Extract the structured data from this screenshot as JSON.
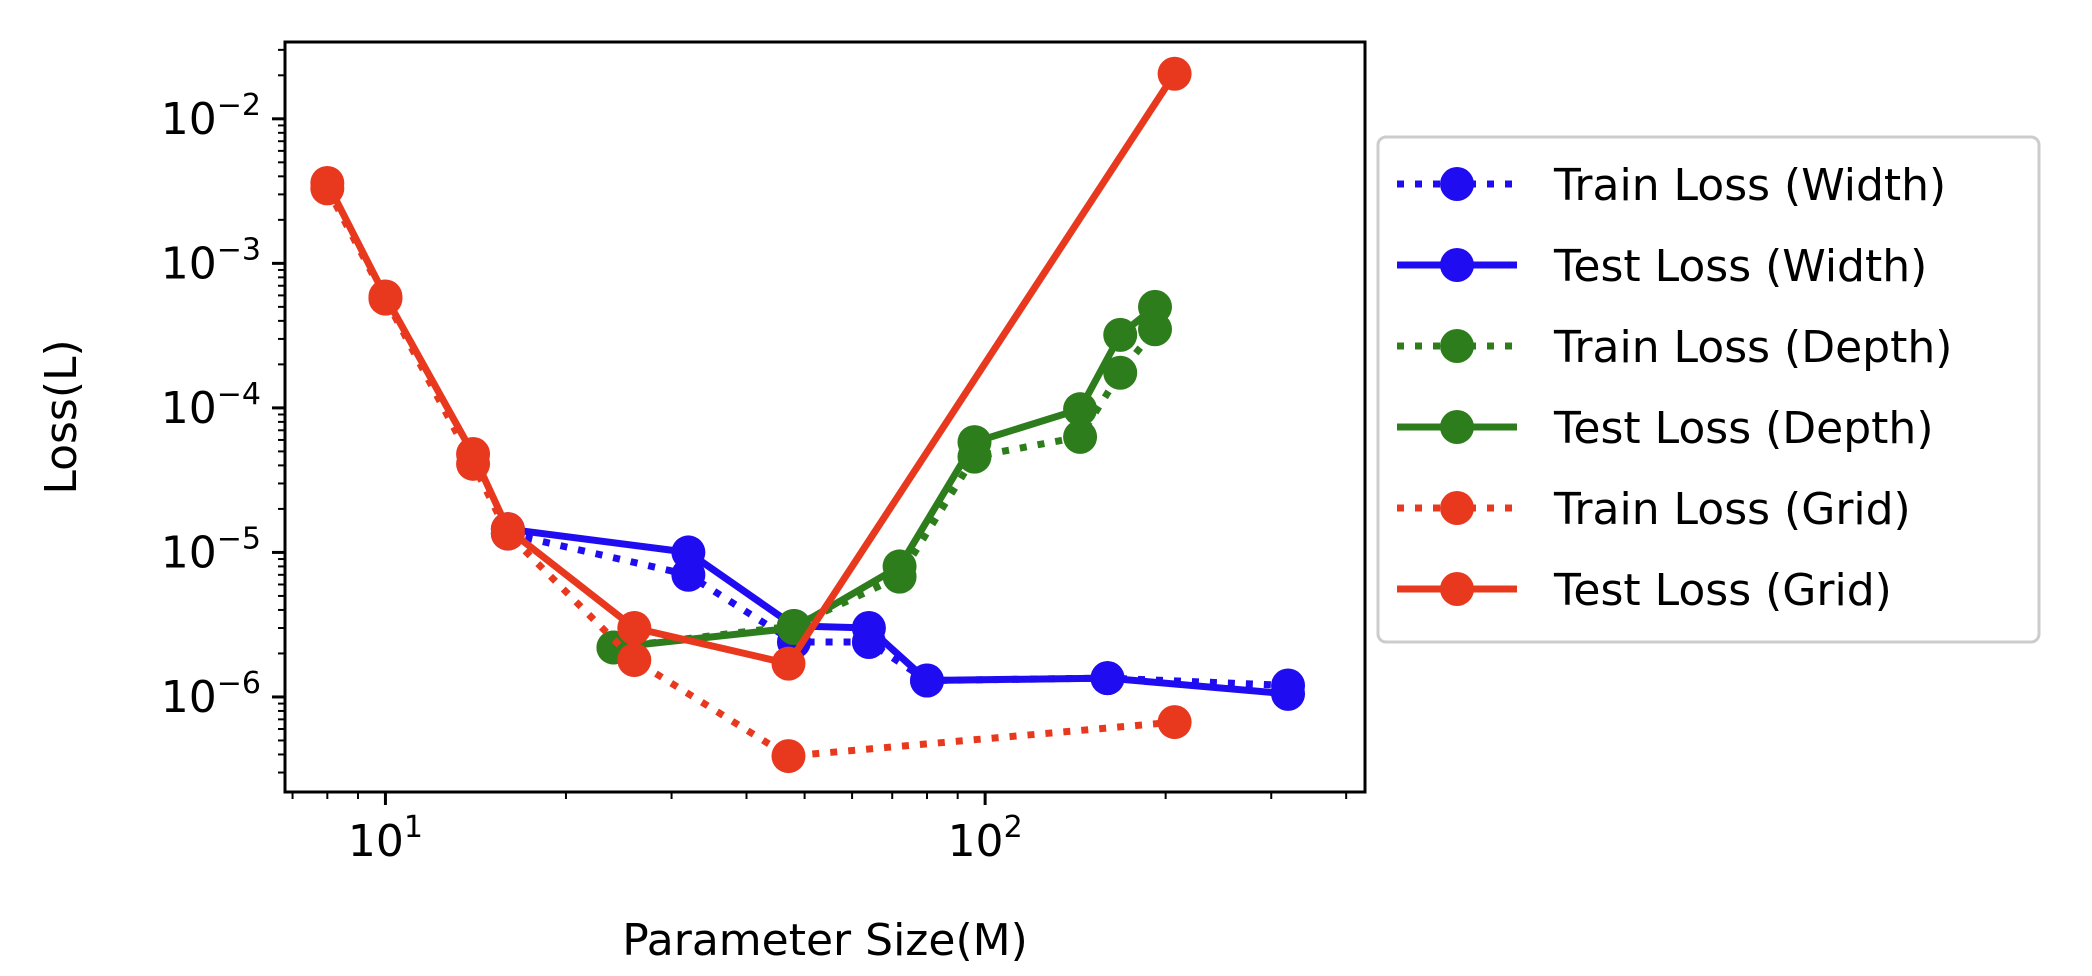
{
  "chart_data": {
    "type": "line",
    "title": "",
    "xlabel": "Parameter Size(M)",
    "ylabel": "Loss(L)",
    "x_scale": "log",
    "y_scale": "log",
    "xlim": [
      6.8,
      430
    ],
    "ylim": [
      2.2e-07,
      0.034
    ],
    "x_ticks": [
      {
        "value": 10,
        "base": "10",
        "exp": "1"
      },
      {
        "value": 100,
        "base": "10",
        "exp": "2"
      }
    ],
    "y_ticks": [
      {
        "value": 1e-06,
        "base": "10",
        "exp": "−6"
      },
      {
        "value": 1e-05,
        "base": "10",
        "exp": "−5"
      },
      {
        "value": 0.0001,
        "base": "10",
        "exp": "−4"
      },
      {
        "value": 0.001,
        "base": "10",
        "exp": "−3"
      },
      {
        "value": 0.01,
        "base": "10",
        "exp": "−2"
      }
    ],
    "grid": false,
    "legend_position": "outside-right",
    "series": [
      {
        "name": "Train Loss (Width)",
        "color": "#1f0cf0",
        "style": "dotted",
        "x": [
          16,
          32,
          48,
          64,
          80,
          160,
          320
        ],
        "y": [
          1.35e-05,
          7e-06,
          2.4e-06,
          2.4e-06,
          1.3e-06,
          1.35e-06,
          1.2e-06
        ]
      },
      {
        "name": "Test Loss (Width)",
        "color": "#1f0cf0",
        "style": "solid",
        "x": [
          16,
          32,
          48,
          64,
          80,
          160,
          320
        ],
        "y": [
          1.45e-05,
          1e-05,
          3.1e-06,
          3e-06,
          1.3e-06,
          1.35e-06,
          1.05e-06
        ]
      },
      {
        "name": "Train Loss (Depth)",
        "color": "#2e7d1c",
        "style": "dotted",
        "x": [
          24,
          48,
          72,
          96,
          144,
          168,
          192
        ],
        "y": [
          2.2e-06,
          3.1e-06,
          6.8e-06,
          4.6e-05,
          6.3e-05,
          0.000175,
          0.00035
        ]
      },
      {
        "name": "Test Loss (Depth)",
        "color": "#2e7d1c",
        "style": "solid",
        "x": [
          24,
          48,
          72,
          96,
          144,
          168,
          192
        ],
        "y": [
          2.2e-06,
          3e-06,
          8e-06,
          5.8e-05,
          9.8e-05,
          0.00032,
          0.0005
        ]
      },
      {
        "name": "Train Loss (Grid)",
        "color": "#e8391f",
        "style": "dotted",
        "x": [
          8,
          10,
          14,
          16,
          26,
          47,
          207
        ],
        "y": [
          0.0033,
          0.00057,
          4.1e-05,
          1.35e-05,
          1.8e-06,
          3.9e-07,
          6.7e-07
        ]
      },
      {
        "name": "Test Loss (Grid)",
        "color": "#e8391f",
        "style": "solid",
        "x": [
          8,
          10,
          14,
          16,
          26,
          47,
          207
        ],
        "y": [
          0.0036,
          0.00059,
          4.8e-05,
          1.45e-05,
          3e-06,
          1.7e-06,
          0.0205
        ]
      }
    ]
  }
}
